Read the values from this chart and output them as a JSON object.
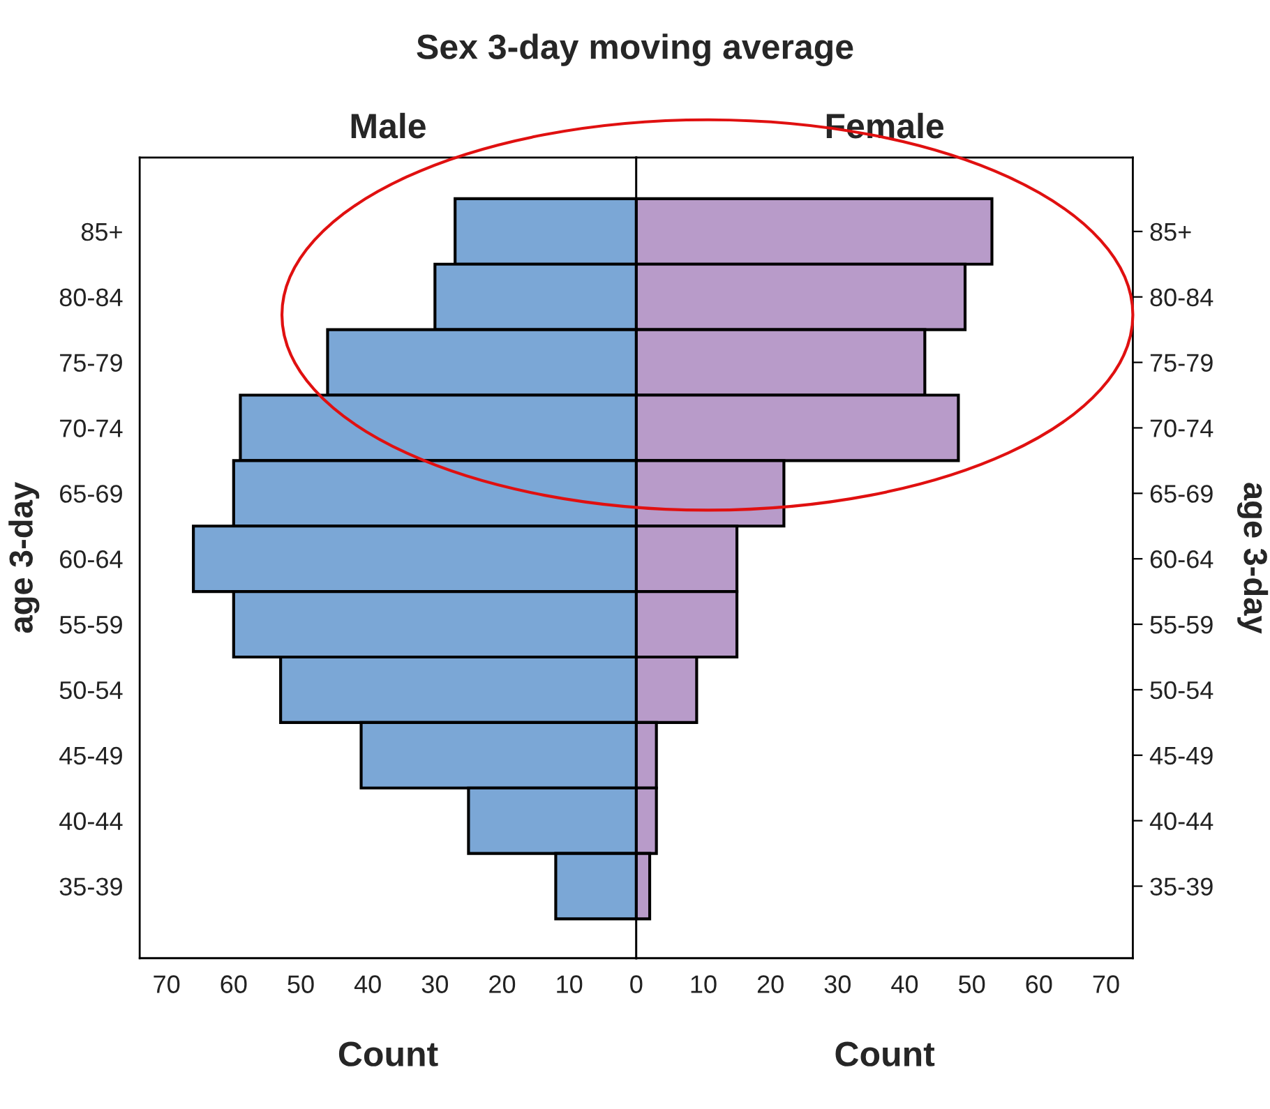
{
  "chart_data": [
    {
      "type": "bar",
      "orientation": "horizontal",
      "title": "Sex 3-day moving average",
      "subtitle": "Male",
      "xlabel": "Count",
      "ylabel": "age 3-day",
      "categories": [
        "85+",
        "80-84",
        "75-79",
        "70-74",
        "65-69",
        "60-64",
        "55-59",
        "50-54",
        "45-49",
        "40-44",
        "35-39"
      ],
      "values": [
        27,
        30,
        46,
        59,
        60,
        66,
        60,
        53,
        41,
        25,
        12
      ],
      "color": "#7ba7d6",
      "xlim": [
        74,
        0
      ],
      "xticks": [
        70,
        60,
        50,
        40,
        30,
        20,
        10
      ],
      "grid": false
    },
    {
      "type": "bar",
      "orientation": "horizontal",
      "subtitle": "Female",
      "xlabel": "Count",
      "ylabel": "age 3-day",
      "categories": [
        "85+",
        "80-84",
        "75-79",
        "70-74",
        "65-69",
        "60-64",
        "55-59",
        "50-54",
        "45-49",
        "40-44",
        "35-39"
      ],
      "values": [
        53,
        49,
        43,
        48,
        22,
        15,
        15,
        9,
        3,
        3,
        2
      ],
      "color": "#b89bc9",
      "xlim": [
        0,
        74
      ],
      "xticks": [
        0,
        10,
        20,
        30,
        40,
        50,
        60,
        70
      ],
      "grid": false
    }
  ]
}
